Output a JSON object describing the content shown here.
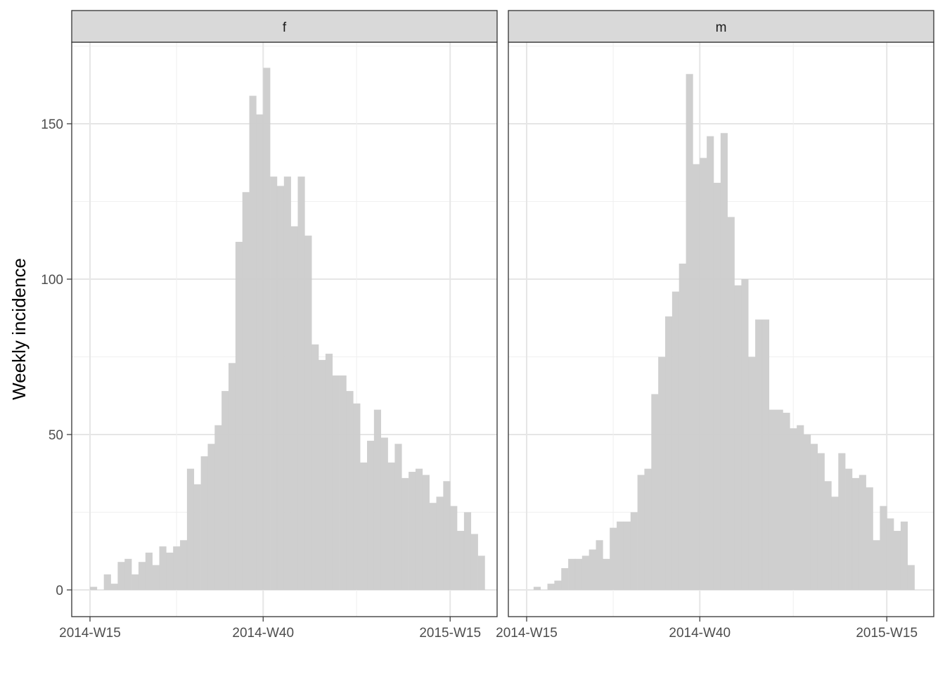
{
  "chart_data": {
    "type": "bar",
    "ylabel": "Weekly incidence",
    "xlabel": "",
    "ylim": [
      0,
      175
    ],
    "y_ticks": [
      0,
      50,
      100,
      150
    ],
    "x_tick_labels": [
      "2014-W15",
      "2014-W40",
      "2015-W15"
    ],
    "x_tick_weeks": [
      0,
      25,
      52
    ],
    "grid": true,
    "bar_color": "#cccccc",
    "facets": [
      {
        "label": "f",
        "start_week": "2014-W15",
        "values": [
          1,
          0,
          5,
          2,
          9,
          10,
          5,
          9,
          12,
          8,
          14,
          12,
          14,
          16,
          39,
          34,
          43,
          47,
          53,
          64,
          73,
          112,
          128,
          159,
          153,
          168,
          133,
          130,
          133,
          117,
          133,
          114,
          79,
          74,
          76,
          69,
          69,
          64,
          60,
          41,
          48,
          58,
          49,
          41,
          47,
          36,
          38,
          39,
          37,
          28,
          30,
          35,
          27,
          19,
          25,
          18,
          11
        ]
      },
      {
        "label": "m",
        "start_week": "2014-W15",
        "values": [
          0,
          1,
          0,
          2,
          3,
          7,
          10,
          10,
          11,
          13,
          16,
          10,
          20,
          22,
          22,
          25,
          37,
          39,
          63,
          75,
          88,
          96,
          105,
          166,
          137,
          139,
          146,
          131,
          147,
          120,
          98,
          100,
          75,
          87,
          87,
          58,
          58,
          57,
          52,
          53,
          50,
          47,
          44,
          35,
          30,
          44,
          39,
          36,
          37,
          33,
          16,
          27,
          23,
          19,
          22,
          8
        ]
      }
    ]
  }
}
